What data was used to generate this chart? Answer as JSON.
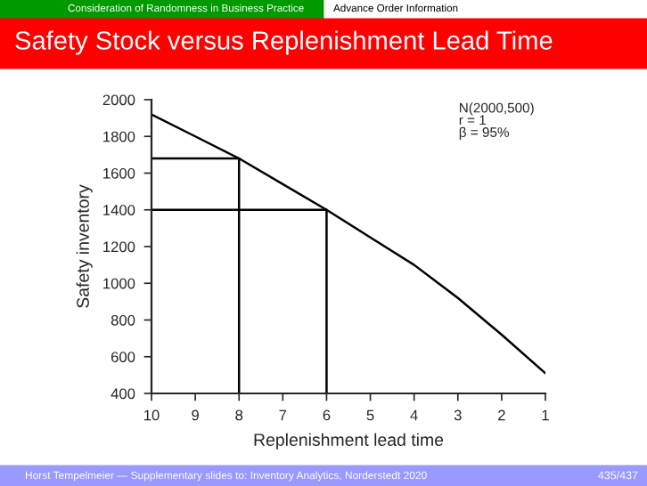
{
  "chart_data": {
    "type": "line",
    "title": "Safety Stock versus Replenishment Lead Time",
    "xlabel": "Replenishment lead time",
    "ylabel": "Safety inventory",
    "annotations": [
      "Consideration of Randomness in Business Practice",
      "Advance Order Information",
      "N(2000,500)",
      "r = 1",
      "β = 95%",
      "Horst Tempelmeier — Supplementary slides to: Inventory Analytics, Norderstedt 2020",
      "435/437"
    ],
    "series": [
      {
        "color": "#000000",
        "x": [
          10,
          9,
          8,
          7,
          6,
          5,
          4,
          3,
          2,
          1
        ],
        "values": [
          1920,
          1800,
          1680,
          1540,
          1400,
          1250,
          1100,
          920,
          720,
          510
        ]
      },
      {
        "color": "#000000",
        "x": [
          10,
          8,
          8
        ],
        "values": [
          1680,
          1680,
          400
        ]
      },
      {
        "color": "#000000",
        "x": [
          10,
          6,
          6
        ],
        "values": [
          1400,
          1400,
          400
        ]
      }
    ],
    "xlim": [
      10,
      1
    ],
    "xticks": [
      10,
      9,
      8,
      7,
      6,
      5,
      4,
      3,
      2,
      1
    ],
    "ylim": [
      400,
      2000
    ],
    "yticks": [
      400,
      600,
      800,
      1000,
      1200,
      1400,
      1600,
      1800,
      2000
    ],
    "grid": false,
    "legend": false,
    "marker": "none",
    "line_style": "solid"
  }
}
